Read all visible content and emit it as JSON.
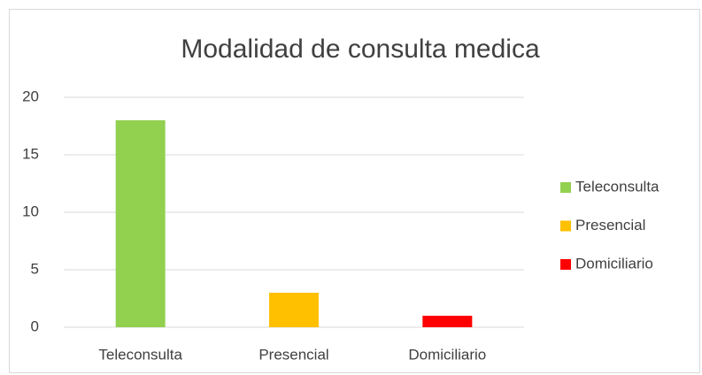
{
  "chart_data": {
    "type": "bar",
    "title": "Modalidad de consulta medica",
    "categories": [
      "Teleconsulta",
      "Presencial",
      "Domiciliario"
    ],
    "values": [
      18,
      3,
      1
    ],
    "colors": [
      "#92d050",
      "#ffc000",
      "#ff0000"
    ],
    "ylim": [
      0,
      20
    ],
    "yticks": [
      0,
      5,
      10,
      15,
      20
    ],
    "grid": true,
    "legend": "right"
  }
}
